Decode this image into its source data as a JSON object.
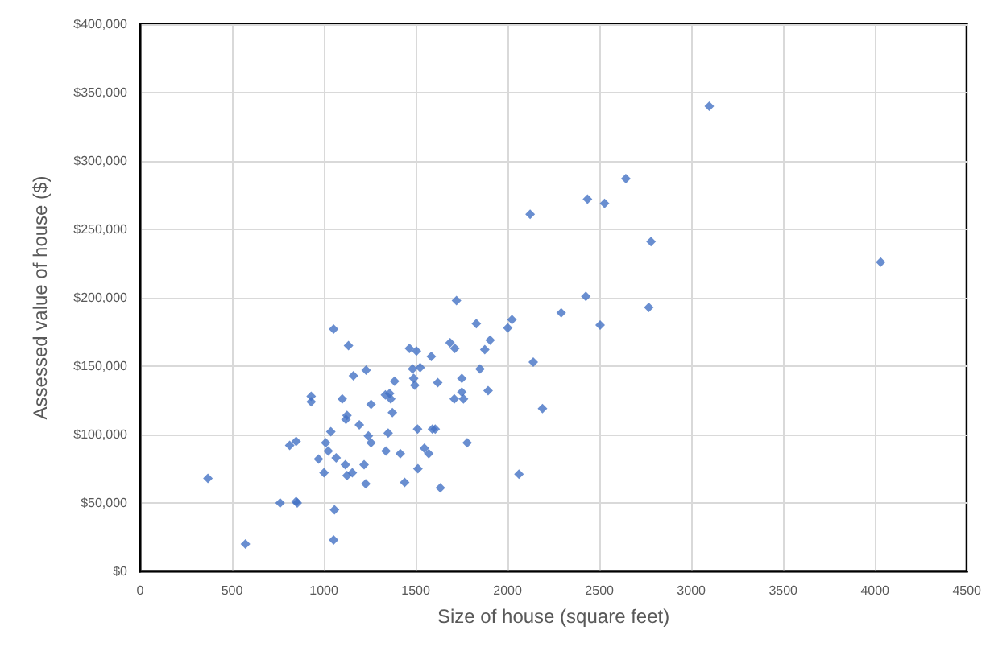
{
  "chart_data": {
    "type": "scatter",
    "xlabel": "Size of house (square feet)",
    "ylabel": "Assessed value of house ($)",
    "x": [
      3098,
      4031,
      2644,
      2435,
      2528,
      2123,
      2781,
      1722,
      2426,
      2292,
      2024,
      2001,
      2769,
      2504,
      1830,
      1687,
      1713,
      1905,
      1876,
      2140,
      1850,
      1751,
      1620,
      1894,
      1751,
      1710,
      1760,
      2190,
      1606,
      1780,
      2062,
      1053,
      1134,
      1466,
      1504,
      1585,
      1230,
      1161,
      1483,
      1524,
      1489,
      1495,
      1385,
      1358,
      1335,
      1364,
      1257,
      1100,
      931,
      931,
      1373,
      1126,
      1120,
      1193,
      1510,
      1591,
      1038,
      1242,
      849,
      1350,
      1257,
      1338,
      1416,
      1010,
      1024,
      1067,
      971,
      1547,
      1571,
      1117,
      1219,
      1001,
      1126,
      1155,
      1512,
      1228,
      1440,
      1634,
      849,
      1058,
      1053,
      369,
      573,
      762,
      855,
      814
    ],
    "series": [
      {
        "color": "#4472c4",
        "values": [
          340000,
          226000,
          287000,
          272000,
          269000,
          261000,
          241000,
          198000,
          201000,
          189000,
          184000,
          178000,
          193000,
          180000,
          181000,
          167000,
          163000,
          169000,
          162000,
          153000,
          148000,
          141000,
          138000,
          132000,
          131000,
          126000,
          126000,
          119000,
          104000,
          94000,
          71000,
          177000,
          165000,
          163000,
          161000,
          157000,
          147000,
          143000,
          148000,
          149000,
          141000,
          136000,
          139000,
          130000,
          129000,
          126000,
          122000,
          126000,
          128000,
          124000,
          116000,
          114000,
          111000,
          107000,
          104000,
          104000,
          102000,
          99000,
          95000,
          101000,
          94000,
          88000,
          86000,
          94000,
          88000,
          83000,
          82000,
          90000,
          86000,
          78000,
          78000,
          72000,
          70000,
          72000,
          75000,
          64000,
          65000,
          61000,
          51000,
          45000,
          23000,
          68000,
          20000,
          50000,
          50000,
          92000
        ]
      }
    ],
    "xlim": [
      0,
      4500
    ],
    "xticks": [
      0,
      500,
      1000,
      1500,
      2000,
      2500,
      3000,
      3500,
      4000,
      4500
    ],
    "ylim": [
      0,
      400000
    ],
    "yticks": [
      {
        "value": 0,
        "label": "$0"
      },
      {
        "value": 50000,
        "label": "$50,000"
      },
      {
        "value": 100000,
        "label": "$100,000"
      },
      {
        "value": 150000,
        "label": "$150,000"
      },
      {
        "value": 200000,
        "label": "$200,000"
      },
      {
        "value": 250000,
        "label": "$250,000"
      },
      {
        "value": 300000,
        "label": "$300,000"
      },
      {
        "value": 350000,
        "label": "$350,000"
      },
      {
        "value": 400000,
        "label": "$400,000"
      }
    ],
    "grid": true,
    "marker": "diamond"
  }
}
